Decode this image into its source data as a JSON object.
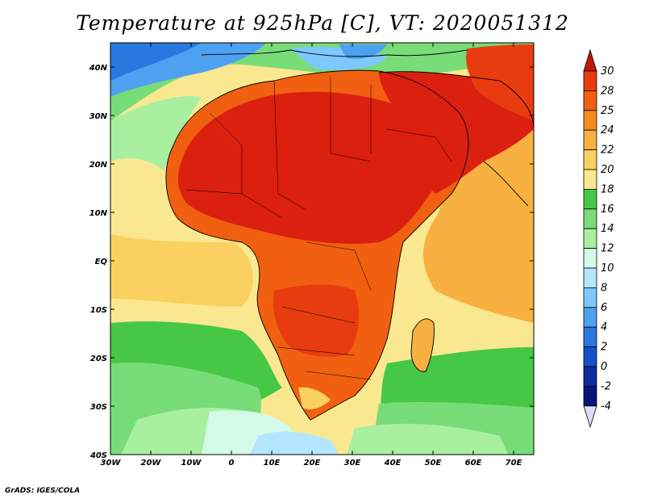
{
  "title": "Temperature at 925hPa [C], VT: 2020051312",
  "credit": "GrADS: IGES/COLA",
  "map": {
    "projection": "lat-lon",
    "lon_range": [
      -30,
      75
    ],
    "lat_range": [
      -40,
      45
    ],
    "x_ticks": [
      "30W",
      "20W",
      "10W",
      "0",
      "10E",
      "20E",
      "30E",
      "40E",
      "50E",
      "60E",
      "70E"
    ],
    "y_ticks": [
      "40N",
      "30N",
      "20N",
      "10N",
      "EQ",
      "10S",
      "20S",
      "30S",
      "40S"
    ]
  },
  "colorbar": {
    "levels": [
      "30",
      "28",
      "25",
      "24",
      "22",
      "20",
      "18",
      "16",
      "14",
      "12",
      "10",
      "8",
      "6",
      "4",
      "2",
      "0",
      "-2",
      "-4"
    ],
    "colors": [
      "#dc2010",
      "#e83c10",
      "#f06010",
      "#f58c1c",
      "#f8b040",
      "#fad060",
      "#fae890",
      "#46c846",
      "#78dc78",
      "#a8f0a0",
      "#d4fbe8",
      "#b4e6ff",
      "#7dc8ff",
      "#4ea0f0",
      "#2878e0",
      "#1450c8",
      "#0c2ca0",
      "#061478"
    ],
    "top_arrow": "#c01808",
    "bottom_arrow": "#dcdcfa"
  },
  "chart_data": {
    "type": "heatmap",
    "title": "Temperature at 925hPa [C], VT: 2020051312",
    "variable": "Temperature at 925hPa",
    "units": "C",
    "valid_time": "2020051312",
    "xlabel": "",
    "ylabel": "",
    "xlim": [
      -30,
      75
    ],
    "ylim": [
      -40,
      45
    ],
    "contour_levels": [
      -4,
      -2,
      0,
      2,
      4,
      6,
      8,
      10,
      12,
      14,
      16,
      18,
      20,
      22,
      24,
      25,
      28,
      30
    ]
  }
}
